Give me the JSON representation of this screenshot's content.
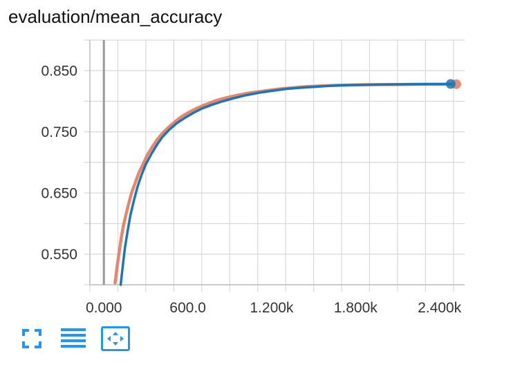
{
  "title": "evaluation/mean_accuracy",
  "colors": {
    "series_orange": "#e4795b",
    "series_blue": "#1976b8",
    "grid": "#d8d8d8",
    "zero_line": "#999999",
    "icon": "#2196f3"
  },
  "toolbar": {
    "icons": [
      "fullscreen-icon",
      "data-list-icon",
      "fit-domain-icon"
    ]
  },
  "chart_data": {
    "type": "line",
    "title": "evaluation/mean_accuracy",
    "xlabel": "",
    "ylabel": "",
    "xlim": [
      -100,
      2580
    ],
    "ylim": [
      0.5,
      0.9
    ],
    "x_ticks": [
      0,
      600,
      1200,
      1800,
      2400
    ],
    "x_tick_labels": [
      "0.000",
      "600.0",
      "1.200k",
      "1.800k",
      "2.400k"
    ],
    "y_ticks": [
      0.55,
      0.65,
      0.75,
      0.85
    ],
    "y_tick_labels": [
      "0.550",
      "0.650",
      "0.750",
      "0.850"
    ],
    "grid": true,
    "series": [
      {
        "color": "#e4795b",
        "x": [
          80,
          95,
          110,
          125,
          140,
          160,
          180,
          200,
          225,
          250,
          280,
          310,
          345,
          380,
          420,
          460,
          500,
          550,
          600,
          660,
          720,
          800,
          880,
          960,
          1050,
          1150,
          1250,
          1350,
          1450,
          1550,
          1650,
          1750,
          1850,
          1950,
          2050,
          2150,
          2250,
          2350,
          2450,
          2500
        ],
        "y": [
          0.503,
          0.53,
          0.555,
          0.578,
          0.597,
          0.617,
          0.635,
          0.652,
          0.667,
          0.683,
          0.697,
          0.712,
          0.725,
          0.737,
          0.748,
          0.757,
          0.765,
          0.774,
          0.781,
          0.788,
          0.794,
          0.801,
          0.806,
          0.81,
          0.814,
          0.817,
          0.82,
          0.822,
          0.824,
          0.825,
          0.826,
          0.8265,
          0.827,
          0.8272,
          0.8274,
          0.8276,
          0.8278,
          0.828,
          0.828,
          0.828
        ]
      },
      {
        "color": "#1976b8",
        "x": [
          120,
          135,
          150,
          170,
          190,
          215,
          240,
          270,
          300,
          340,
          380,
          420,
          470,
          520,
          580,
          640,
          700,
          770,
          850,
          930,
          1020,
          1110,
          1200,
          1300,
          1400,
          1500,
          1600,
          1700,
          1800,
          1900,
          2000,
          2100,
          2200,
          2300,
          2400,
          2480
        ],
        "y": [
          0.5,
          0.53,
          0.56,
          0.588,
          0.614,
          0.638,
          0.66,
          0.68,
          0.697,
          0.714,
          0.729,
          0.742,
          0.754,
          0.764,
          0.773,
          0.781,
          0.788,
          0.794,
          0.8,
          0.805,
          0.81,
          0.814,
          0.817,
          0.82,
          0.822,
          0.8235,
          0.825,
          0.826,
          0.8265,
          0.827,
          0.8273,
          0.8276,
          0.8278,
          0.828,
          0.828,
          0.8282
        ]
      }
    ]
  }
}
